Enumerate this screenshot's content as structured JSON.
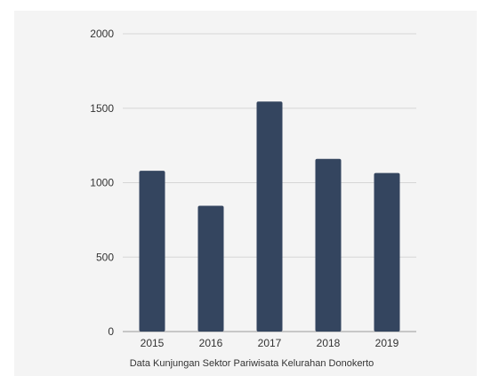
{
  "chart_data": {
    "type": "bar",
    "title": "",
    "caption": "Data Kunjungan Sektor Pariwisata Kelurahan Donokerto",
    "xlabel": "",
    "ylabel": "",
    "categories": [
      "2015",
      "2016",
      "2017",
      "2018",
      "2019"
    ],
    "values": [
      1080,
      845,
      1545,
      1160,
      1065
    ],
    "ylim": [
      0,
      2000
    ],
    "yticks": [
      0,
      500,
      1000,
      1500,
      2000
    ],
    "ytick_labels": [
      "0",
      "500",
      "1000",
      "1500",
      "2000"
    ],
    "grid": true,
    "legend": "none",
    "bar_color": "#34455f",
    "grid_color": "#d6d6d6",
    "background_color": "#f4f4f4"
  }
}
